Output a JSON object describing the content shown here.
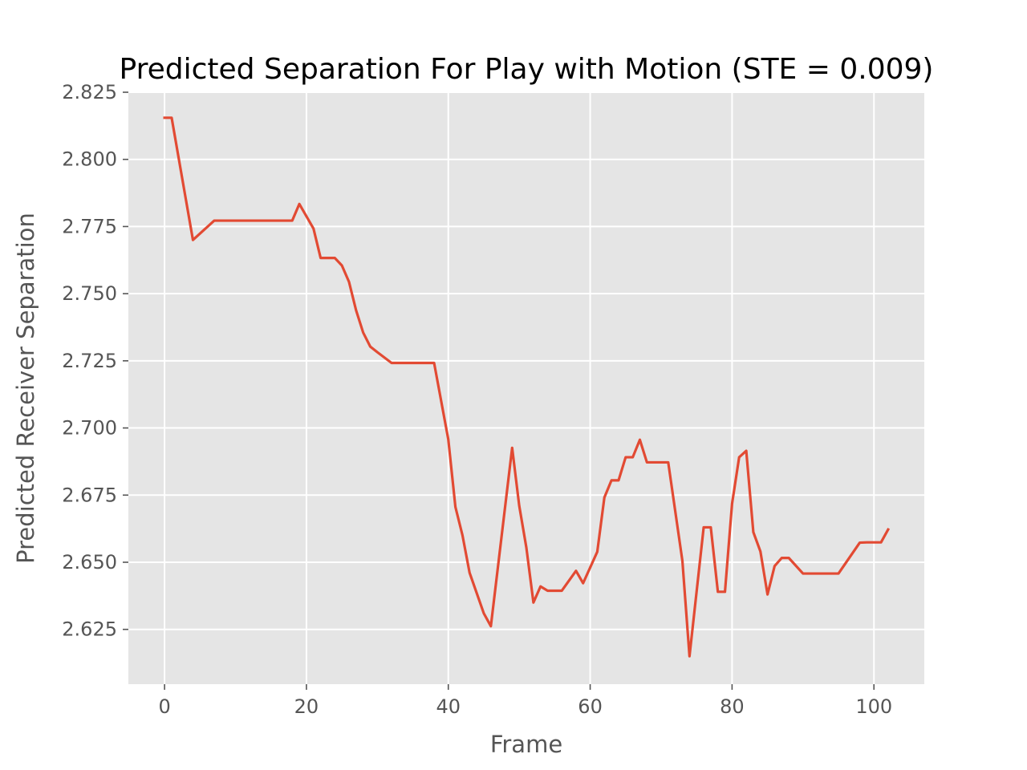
{
  "chart_data": {
    "type": "line",
    "title": "Predicted Separation For Play with Motion (STE = 0.009)",
    "xlabel": "Frame",
    "ylabel": "Predicted Receiver Separation",
    "xlim": [
      -5.1,
      107.1
    ],
    "ylim": [
      2.6046,
      2.825
    ],
    "xticks": [
      0,
      20,
      40,
      60,
      80,
      100
    ],
    "xtick_labels": [
      "0",
      "20",
      "40",
      "60",
      "80",
      "100"
    ],
    "yticks": [
      2.625,
      2.65,
      2.675,
      2.7,
      2.725,
      2.75,
      2.775,
      2.8,
      2.825
    ],
    "ytick_labels": [
      "2.625",
      "2.650",
      "2.675",
      "2.700",
      "2.725",
      "2.750",
      "2.775",
      "2.800",
      "2.825"
    ],
    "grid": true,
    "style": "ggplot",
    "colors": {
      "line": "#E24A33",
      "background": "#E5E5E5",
      "grid": "#FFFFFF",
      "text": "#555555"
    },
    "series": [
      {
        "x": [
          0,
          1,
          4,
          7,
          8,
          18,
          19,
          21,
          22,
          24,
          25,
          26,
          27,
          28,
          29,
          30,
          32,
          33,
          38,
          40,
          41,
          42,
          43,
          45,
          46,
          49,
          50,
          51,
          52,
          53,
          54,
          55,
          56,
          58,
          59,
          61,
          62,
          63,
          64,
          65,
          66,
          67,
          68,
          71,
          73,
          74,
          76,
          77,
          78,
          79,
          80,
          81,
          82,
          83,
          84,
          85,
          86,
          87,
          88,
          90,
          95,
          98,
          99,
          101,
          102
        ],
        "y": [
          2.8155,
          2.8155,
          2.77,
          2.7772,
          2.7772,
          2.7772,
          2.7834,
          2.7742,
          2.7633,
          2.7633,
          2.7605,
          2.7544,
          2.7438,
          2.7355,
          2.7303,
          2.7282,
          2.7242,
          2.7242,
          2.7242,
          2.6957,
          2.6706,
          2.66,
          2.6461,
          2.631,
          2.6262,
          2.6926,
          2.671,
          2.6555,
          2.635,
          2.641,
          2.6394,
          2.6394,
          2.6394,
          2.6468,
          2.6422,
          2.6539,
          2.6741,
          2.6805,
          2.6805,
          2.6891,
          2.6891,
          2.6956,
          2.6872,
          2.6872,
          2.6505,
          2.615,
          2.663,
          2.663,
          2.639,
          2.639,
          2.6718,
          2.6891,
          2.6915,
          2.6612,
          2.654,
          2.638,
          2.6486,
          2.6516,
          2.6516,
          2.6458,
          2.6458,
          2.6573,
          2.6574,
          2.6574,
          2.6622
        ]
      }
    ]
  }
}
